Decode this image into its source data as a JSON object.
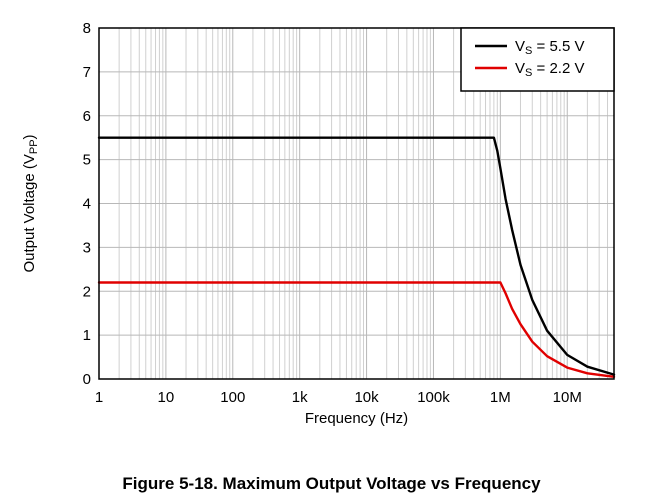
{
  "figure": {
    "caption": "Figure 5-18. Maximum Output Voltage vs Frequency"
  },
  "chart_data": {
    "type": "line",
    "title": "",
    "xlabel": "Frequency (Hz)",
    "ylabel_main": "Output Voltage (V",
    "ylabel_sub": "PP",
    "ylabel_end": ")",
    "x_scale": "log",
    "xlim": [
      1,
      50000000
    ],
    "ylim": [
      0,
      8
    ],
    "x_ticks": [
      1,
      10,
      100,
      1000,
      10000,
      100000,
      1000000,
      10000000
    ],
    "x_tick_labels": [
      "1",
      "10",
      "100",
      "1k",
      "10k",
      "100k",
      "1M",
      "10M"
    ],
    "y_ticks": [
      0,
      1,
      2,
      3,
      4,
      5,
      6,
      7,
      8
    ],
    "y_tick_labels": [
      "0",
      "1",
      "2",
      "3",
      "4",
      "5",
      "6",
      "7",
      "8"
    ],
    "grid": true,
    "legend_position": "top-right",
    "series": [
      {
        "label_main": "V",
        "label_sub": "S",
        "label_end": " = 5.5 V",
        "color": "#000000",
        "x": [
          1,
          100,
          10000,
          800000,
          900000,
          1000000,
          1200000,
          1500000,
          2000000,
          3000000,
          5000000,
          10000000,
          20000000,
          50000000
        ],
        "y": [
          5.5,
          5.5,
          5.5,
          5.5,
          5.2,
          4.8,
          4.1,
          3.4,
          2.6,
          1.8,
          1.1,
          0.55,
          0.28,
          0.1
        ]
      },
      {
        "label_main": "V",
        "label_sub": "S",
        "label_end": " = 2.2 V",
        "color": "#e00000",
        "x": [
          1,
          100,
          10000,
          1000000,
          1200000,
          1500000,
          2000000,
          3000000,
          5000000,
          10000000,
          20000000,
          50000000
        ],
        "y": [
          2.2,
          2.2,
          2.2,
          2.2,
          1.95,
          1.6,
          1.25,
          0.85,
          0.52,
          0.26,
          0.13,
          0.05
        ]
      }
    ]
  }
}
